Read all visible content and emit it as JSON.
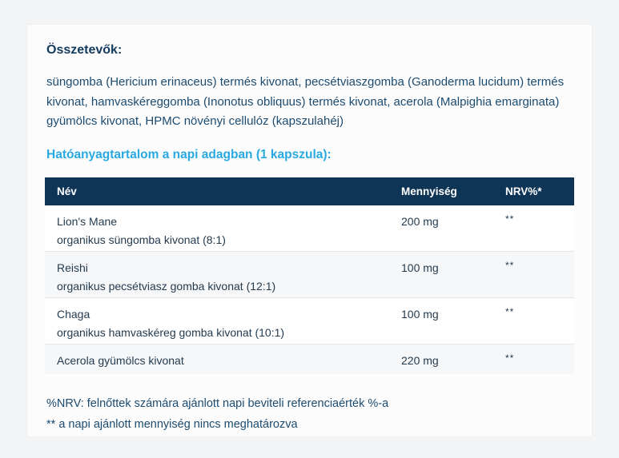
{
  "page": {
    "ingredients_title": "Összetevők:",
    "ingredients_body": "süngomba (Hericium erinaceus) termés kivonat, pecsétviaszgomba (Ganoderma lucidum) termés kivonat, hamvaskéreggomba (Inonotus obliquus) termés kivonat, acerola (Malpighia emarginata) gyümölcs kivonat, HPMC növényi cellulóz (kapszulahéj)",
    "actives_title": "Hatóanyagtartalom a napi adagban (1 kapszula):"
  },
  "table": {
    "headers": {
      "name": "Név",
      "amount": "Mennyiség",
      "nrv": "NRV%*"
    },
    "rows": [
      {
        "name": "Lion's Mane",
        "detail": "organikus süngomba kivonat (8:1)",
        "amount": "200 mg",
        "nrv": "**"
      },
      {
        "name": "Reishi",
        "detail": "organikus pecsétviasz gomba kivonat (12:1)",
        "amount": "100 mg",
        "nrv": "**"
      },
      {
        "name": "Chaga",
        "detail": "organikus hamvaskéreg gomba kivonat (10:1)",
        "amount": "100 mg",
        "nrv": "**"
      },
      {
        "name": "Acerola gyümölcs kivonat",
        "detail": "",
        "amount": "220 mg",
        "nrv": "**"
      }
    ]
  },
  "footnotes": {
    "nrv_note": "%NRV: felnőttek számára ajánlott napi beviteli referenciaérték %-a",
    "daily_note": "** a napi ajánlott mennyiség nincs meghatározva"
  },
  "colors": {
    "table_header_bg": "#0e3456",
    "accent_cyan": "#29a9e1",
    "body_text": "#1c4b70",
    "heading_text": "#123a5c",
    "row_alt_bg": "#f6f7f8",
    "page_bg": "#f3f4f5",
    "card_bg": "#fcfcfd"
  }
}
